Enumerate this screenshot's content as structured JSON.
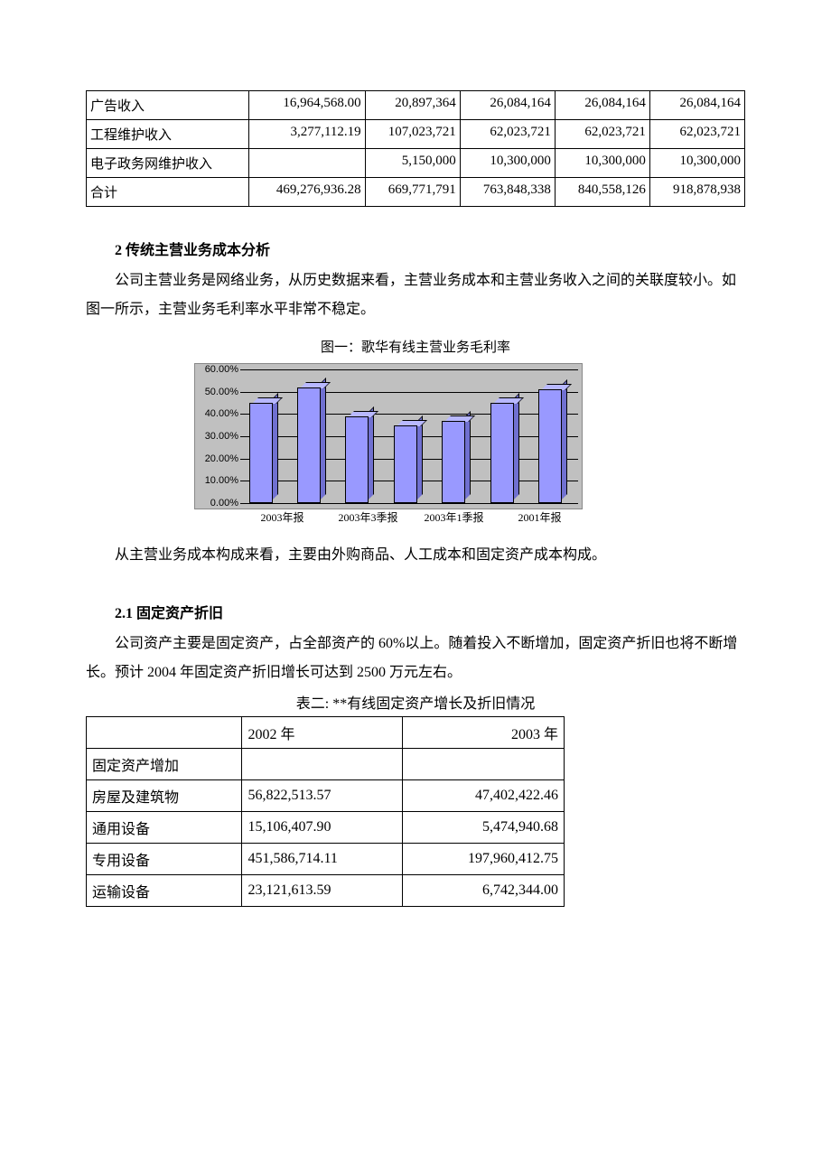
{
  "table1": {
    "rows": [
      {
        "label": "广告收入",
        "vals": [
          "16,964,568.00",
          "20,897,364",
          "26,084,164",
          "26,084,164",
          "26,084,164"
        ]
      },
      {
        "label": "工程维护收入",
        "vals": [
          "3,277,112.19",
          "107,023,721",
          "62,023,721",
          "62,023,721",
          "62,023,721"
        ]
      },
      {
        "label": "电子政务网维护收入",
        "vals": [
          "",
          "5,150,000",
          "10,300,000",
          "10,300,000",
          "10,300,000"
        ]
      },
      {
        "label": "合计",
        "vals": [
          "469,276,936.28",
          "669,771,791",
          "763,848,338",
          "840,558,126",
          "918,878,938"
        ]
      }
    ]
  },
  "section2_title": "2 传统主营业务成本分析",
  "para2": "公司主营业务是网络业务，从历史数据来看，主营业务成本和主营业务收入之间的关联度较小。如图一所示，主营业务毛利率水平非常不稳定。",
  "fig1_title": "图一：歌华有线主营业务毛利率",
  "chart": {
    "type": "bar",
    "ymin": 0,
    "ymax": 60,
    "ytick": 10,
    "yformat": "pct2",
    "bar_fill": "#9999ff",
    "bar_side": "#7070d0",
    "bar_top": "#b8b8ff",
    "background": "#c0c0c0",
    "gridline": "#000000",
    "categories": [
      "2003年报",
      "",
      "2003年3季报",
      "",
      "2003年1季报",
      "",
      "2001年报"
    ],
    "xlabels": [
      "2003年报",
      "2003年3季报",
      "2003年1季报",
      "2001年报"
    ],
    "values": [
      45,
      52,
      39,
      35,
      37,
      45,
      51
    ]
  },
  "para3": "从主营业务成本构成来看，主要由外购商品、人工成本和固定资产成本构成。",
  "section21_title": "2.1  固定资产折旧",
  "para4": "公司资产主要是固定资产，占全部资产的 60%以上。随着投入不断增加，固定资产折旧也将不断增长。预计 2004 年固定资产折旧增长可达到 2500 万元左右。",
  "tbl2_title": "表二:  **有线固定资产增长及折旧情况",
  "table2": {
    "header": [
      "",
      "2002 年",
      "2003 年"
    ],
    "rows": [
      {
        "label": "固定资产增加",
        "v1": "",
        "v2": ""
      },
      {
        "label": "房屋及建筑物",
        "v1": "56,822,513.57",
        "v2": "47,402,422.46"
      },
      {
        "label": "通用设备",
        "v1": "15,106,407.90",
        "v2": "5,474,940.68"
      },
      {
        "label": "专用设备",
        "v1": "451,586,714.11",
        "v2": "197,960,412.75"
      },
      {
        "label": "运输设备",
        "v1": "23,121,613.59",
        "v2": "6,742,344.00"
      }
    ]
  }
}
